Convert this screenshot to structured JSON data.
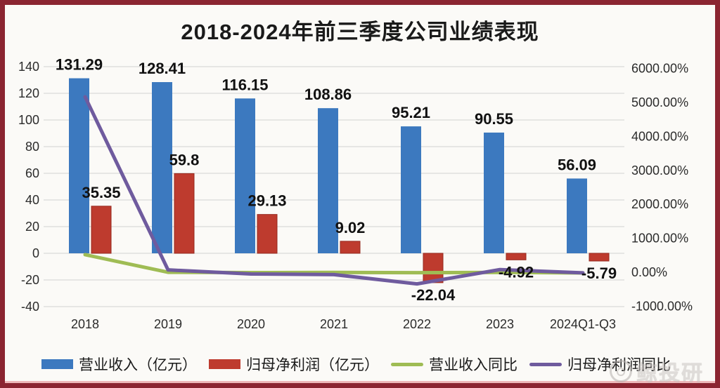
{
  "title": "2018-2024年前三季度公司业绩表现",
  "watermark": {
    "text": "鲸投研"
  },
  "frame": {
    "border_color": "#8B2531",
    "background": "#FBFAF7"
  },
  "chart_data": {
    "type": "bar",
    "subtype": "combo-bar-line-dual-axis",
    "title": "2018-2024年前三季度公司业绩表现",
    "categories": [
      "2018",
      "2019",
      "2020",
      "2021",
      "2022",
      "2023",
      "2024Q1-Q3"
    ],
    "series": [
      {
        "name": "营业收入（亿元）",
        "type": "bar",
        "axis": "left",
        "color": "#3C79BF",
        "values": [
          131.29,
          128.41,
          116.15,
          108.86,
          95.21,
          90.55,
          56.09
        ],
        "labels": [
          "131.29",
          "128.41",
          "116.15",
          "108.86",
          "95.21",
          "90.55",
          "56.09"
        ]
      },
      {
        "name": "归母净利润（亿元）",
        "type": "bar",
        "axis": "left",
        "color": "#BE3B2E",
        "edge_color": "#96291F",
        "values": [
          35.35,
          59.8,
          29.13,
          9.02,
          -22.04,
          -4.92,
          -5.79
        ],
        "labels": [
          "35.35",
          "59.8",
          "29.13",
          "9.02",
          "-22.04",
          "-4.92",
          "-5.79"
        ]
      },
      {
        "name": "营业收入同比",
        "type": "line",
        "axis": "right",
        "color": "#9FBC54",
        "values_pct_estimated": [
          517,
          -2,
          -10,
          -6,
          -13,
          -5,
          -20
        ]
      },
      {
        "name": "归母净利润同比",
        "type": "line",
        "axis": "right",
        "color": "#6F5B9E",
        "values_pct_estimated": [
          5166,
          69,
          -51,
          -69,
          -344,
          78,
          -17
        ]
      }
    ],
    "left_axis": {
      "ticks": [
        140,
        120,
        100,
        80,
        60,
        40,
        20,
        0,
        -20,
        -40
      ],
      "min": -40,
      "max": 140
    },
    "right_axis": {
      "tick_labels": [
        "6000.00%",
        "5000.00%",
        "4000.00%",
        "3000.00%",
        "2000.00%",
        "1000.00%",
        "0.00%",
        "-1000.00%"
      ],
      "tick_values": [
        6000,
        5000,
        4000,
        3000,
        2000,
        1000,
        0,
        -1000
      ],
      "min": -1000,
      "max": 6000
    },
    "grid": true,
    "legend_position": "bottom",
    "gridline_color": "#D9D9D9"
  }
}
